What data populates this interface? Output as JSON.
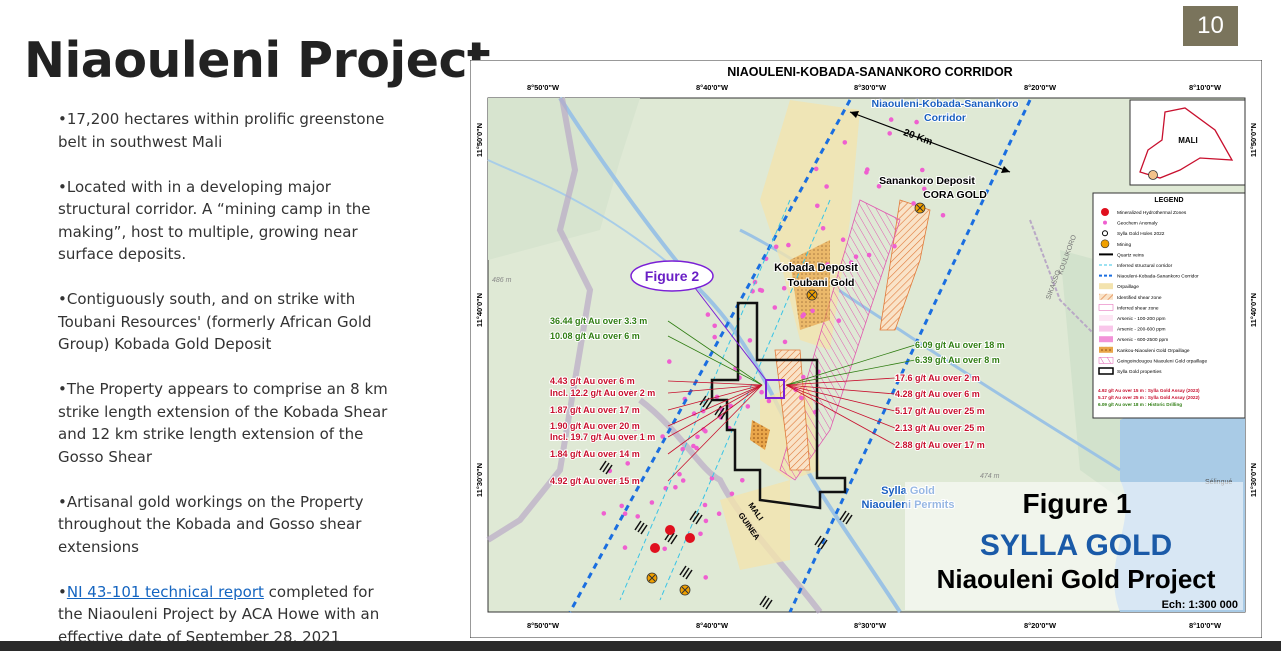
{
  "page_number": "10",
  "title": "Niaouleni Project",
  "bullets": [
    "•17,200 hectares within prolific greenstone belt in southwest Mali",
    "•Located with in a developing major structural corridor. A “mining camp in the making”, host to multiple, growing near surface deposits.",
    "•Contiguously south, and on strike with Toubani Resources' (formerly African Gold Group) Kobada Gold Deposit",
    "•The Property appears to comprise an 8 km strike length extension of the Kobada Shear and 12 km strike length extension of the Gosso Shear",
    "•Artisanal gold workings on the Property throughout the Kobada and Gosso shear extensions"
  ],
  "last_bullet": {
    "prefix": "•",
    "link": "NI 43-101 technical report",
    "text": " completed for the Niaouleni Project by ACA Howe with an effective date of September 28, 2021"
  },
  "map": {
    "title": "NIAOULENI-KOBADA-SANANKORO CORRIDOR",
    "longitudes": [
      "8°50'0\"W",
      "8°40'0\"W",
      "8°30'0\"W",
      "8°20'0\"W",
      "8°10'0\"W"
    ],
    "latitudes": [
      "11°50'0\"N",
      "11°40'0\"N",
      "11°30'0\"N"
    ],
    "corridor_label": [
      "Niaouleni-Kobada-Sanankoro",
      "Corridor"
    ],
    "distance": "20 Km",
    "sanankoro": [
      "Sanankoro Deposit",
      "CORA GOLD"
    ],
    "kobada": [
      "Kobada Deposit",
      "Toubani Gold"
    ],
    "figure2": "Figure 2",
    "permits": [
      "Sylla Gold",
      "Niaouleni Permits"
    ],
    "places": [
      "MALI",
      "GUINEA",
      "KOULIKORO",
      "SIKASSO",
      "486 m",
      "474 m",
      "Sélingué"
    ],
    "assays_left": [
      {
        "text": "36.44 g/t Au over 3.3 m",
        "color": "#2f7d12"
      },
      {
        "text": "10.08 g/t Au over 6 m",
        "color": "#2f7d12"
      },
      {
        "text": "4.43 g/t Au over 6 m",
        "color": "#c8102e"
      },
      {
        "text": "Incl. 12.2 g/t Au over 2 m",
        "color": "#c8102e"
      },
      {
        "text": "1.87 g/t Au over 17 m",
        "color": "#c8102e"
      },
      {
        "text": "1.90 g/t Au over 20 m",
        "color": "#c8102e"
      },
      {
        "text": "Incl. 19.7 g/t Au over 1 m",
        "color": "#c8102e"
      },
      {
        "text": "1.84 g/t Au over 14 m",
        "color": "#c8102e"
      },
      {
        "text": "4.92 g/t Au over 15 m",
        "color": "#c8102e"
      }
    ],
    "assays_right": [
      {
        "text": "6.09 g/t Au over 18 m",
        "color": "#2f7d12"
      },
      {
        "text": "6.39 g/t Au over 8 m",
        "color": "#2f7d12"
      },
      {
        "text": "17.6 g/t Au over 2 m",
        "color": "#c8102e"
      },
      {
        "text": "4.28 g/t Au over 6 m",
        "color": "#c8102e"
      },
      {
        "text": "5.17 g/t Au over 25 m",
        "color": "#c8102e"
      },
      {
        "text": "2.13 g/t Au over 25 m",
        "color": "#c8102e"
      },
      {
        "text": "2.88 g/t Au over 17 m",
        "color": "#c8102e"
      }
    ],
    "inset_label": "MALI",
    "legend": {
      "title": "LEGEND",
      "items": [
        "Mineralized Hydrothermal Zones",
        "Geochem Anomaly",
        "Sylla Gold Holes 2022",
        "Mining",
        "Quartz veins",
        "Inferred structural corridor",
        "Niaouleni-Kobada-Sanankoro Corridor",
        "Orpaillage",
        "Identified shear zone",
        "Inferred shear zone",
        "Arsenic - 100-200 ppm",
        "Arsenic - 200-600 ppm",
        "Arsenic - 600-2500 ppm",
        "Kankou-Niaouleni Gold Orpaillage",
        "Goingoindougou Niaouleni Gold orpaillage",
        "Sylla Gold properties"
      ],
      "notes": [
        {
          "text": "4.92 g/t Au over 15 m : Sylla Gold Assay (2023)",
          "color": "#c8102e"
        },
        {
          "text": "5.17 g/t Au over 25 m : Sylla Gold Assay (2022)",
          "color": "#c8102e"
        },
        {
          "text": "6.09 g/t Au over 18 m : Historic Drilling",
          "color": "#2f7d12"
        }
      ]
    },
    "figure": "Figure 1",
    "company": "SYLLA GOLD",
    "project": "Niaouleni Gold Project",
    "scale": "Ech: 1:300 000"
  }
}
